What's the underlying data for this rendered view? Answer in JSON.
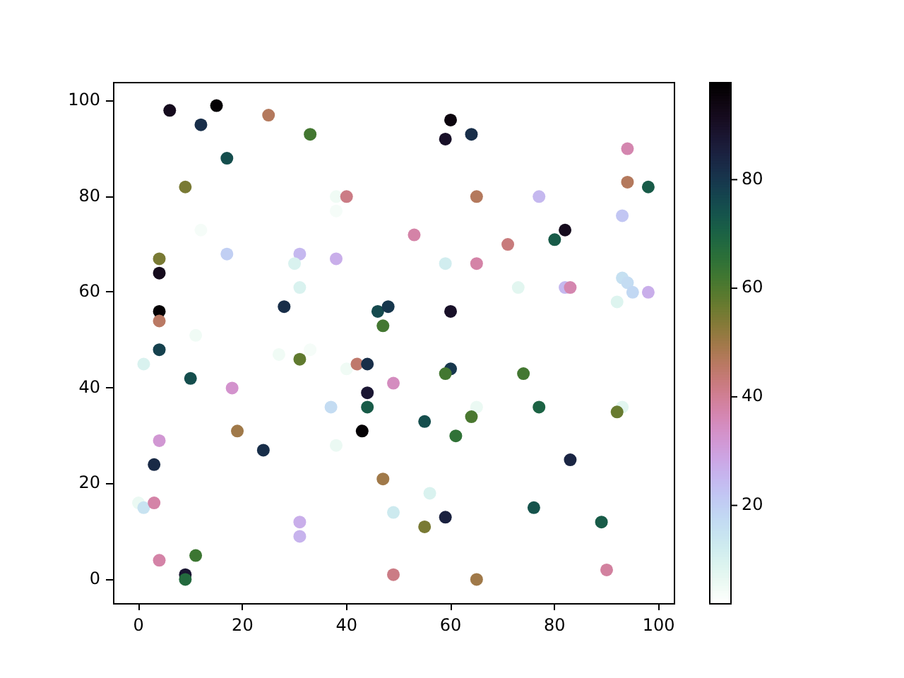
{
  "chart_data": {
    "type": "scatter",
    "x": [
      6,
      15,
      12,
      25,
      33,
      17,
      9,
      38,
      40,
      38,
      12,
      17,
      31,
      30,
      38,
      4,
      4,
      31,
      4,
      4,
      28,
      46,
      47,
      11,
      4,
      60,
      59,
      64,
      94,
      94,
      98,
      65,
      77,
      93,
      82,
      80,
      53,
      71,
      59,
      65,
      73,
      82,
      83,
      93,
      94,
      95,
      98,
      92,
      60,
      48,
      1,
      10,
      18,
      27,
      31,
      33,
      40,
      42,
      44,
      44,
      44,
      43,
      37,
      38,
      19,
      24,
      4,
      3,
      0,
      1,
      3,
      4,
      11,
      9,
      9,
      31,
      31,
      47,
      49,
      60,
      59,
      74,
      65,
      64,
      77,
      93,
      92,
      55,
      61,
      83,
      56,
      49,
      59,
      55,
      76,
      89,
      49,
      65,
      90
    ],
    "values": [
      98,
      99,
      95,
      97,
      93,
      88,
      82,
      80,
      80,
      77,
      73,
      68,
      68,
      66,
      67,
      67,
      64,
      61,
      56,
      54,
      57,
      56,
      53,
      51,
      48,
      96,
      92,
      93,
      90,
      83,
      82,
      80,
      80,
      76,
      73,
      71,
      72,
      70,
      66,
      66,
      61,
      61,
      61,
      63,
      62,
      60,
      60,
      58,
      56,
      57,
      45,
      42,
      40,
      47,
      46,
      48,
      44,
      45,
      45,
      39,
      36,
      31,
      36,
      28,
      31,
      27,
      29,
      24,
      16,
      15,
      16,
      4,
      5,
      1,
      0,
      12,
      9,
      21,
      41,
      44,
      43,
      43,
      36,
      34,
      36,
      36,
      35,
      33,
      30,
      25,
      18,
      14,
      13,
      11,
      15,
      12,
      1,
      0,
      2
    ],
    "cvalues": [
      92,
      97,
      82,
      47,
      62,
      75,
      55,
      5,
      42,
      4,
      4,
      20,
      25,
      10,
      27,
      55,
      92,
      10,
      97,
      46,
      82,
      76,
      62,
      5,
      78,
      95,
      90,
      82,
      37,
      47,
      72,
      47,
      25,
      22,
      92,
      72,
      38,
      43,
      12,
      38,
      8,
      25,
      37,
      16,
      17,
      18,
      27,
      9,
      90,
      80,
      10,
      75,
      33,
      5,
      58,
      4,
      5,
      45,
      82,
      88,
      72,
      97,
      17,
      6,
      50,
      82,
      32,
      83,
      6,
      15,
      38,
      38,
      63,
      88,
      68,
      27,
      26,
      50,
      35,
      80,
      62,
      62,
      6,
      61,
      70,
      8,
      57,
      75,
      65,
      84,
      10,
      13,
      85,
      55,
      74,
      72,
      42,
      50,
      39
    ],
    "clim": [
      2,
      98
    ],
    "cticks": [
      20,
      40,
      60,
      80
    ],
    "xlim": [
      -4.9,
      102.9
    ],
    "ylim": [
      -4.95,
      103.95
    ],
    "xticks": [
      0,
      20,
      40,
      60,
      80,
      100
    ],
    "yticks": [
      0,
      20,
      40,
      60,
      80,
      100
    ],
    "marker": "circle"
  }
}
